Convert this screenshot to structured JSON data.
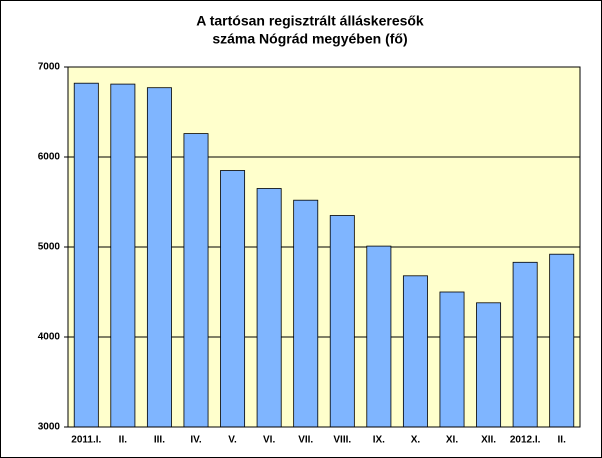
{
  "chart_data": {
    "type": "bar",
    "title": [
      "A tartósan regisztrált álláskeresők",
      "száma Nógrád megyében (fő)"
    ],
    "categories": [
      "2011.I.",
      "II.",
      "III.",
      "IV.",
      "V.",
      "VI.",
      "VII.",
      "VIII.",
      "IX.",
      "X.",
      "XI.",
      "XII.",
      "2012.I.",
      "II."
    ],
    "values": [
      6820,
      6810,
      6770,
      6260,
      5850,
      5650,
      5520,
      5350,
      5010,
      4680,
      4500,
      4380,
      4830,
      4920
    ],
    "color": "#7fb5ff",
    "ylim": [
      3000,
      7000
    ],
    "yticks": [
      3000,
      4000,
      5000,
      6000,
      7000
    ],
    "grid": true
  }
}
